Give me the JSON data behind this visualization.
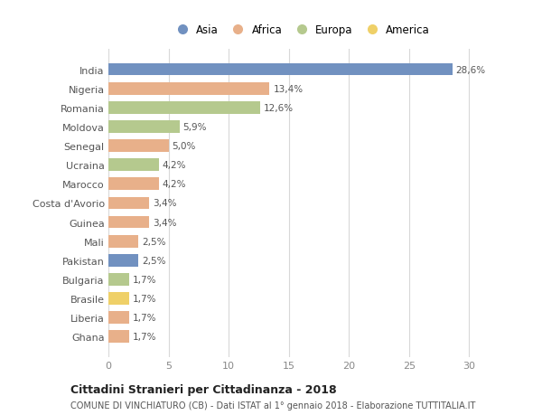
{
  "countries": [
    "India",
    "Nigeria",
    "Romania",
    "Moldova",
    "Senegal",
    "Ucraina",
    "Marocco",
    "Costa d'Avorio",
    "Guinea",
    "Mali",
    "Pakistan",
    "Bulgaria",
    "Brasile",
    "Liberia",
    "Ghana"
  ],
  "values": [
    28.6,
    13.4,
    12.6,
    5.9,
    5.0,
    4.2,
    4.2,
    3.4,
    3.4,
    2.5,
    2.5,
    1.7,
    1.7,
    1.7,
    1.7
  ],
  "labels": [
    "28,6%",
    "13,4%",
    "12,6%",
    "5,9%",
    "5,0%",
    "4,2%",
    "4,2%",
    "3,4%",
    "3,4%",
    "2,5%",
    "2,5%",
    "1,7%",
    "1,7%",
    "1,7%",
    "1,7%"
  ],
  "regions": [
    "Asia",
    "Africa",
    "Europa",
    "Europa",
    "Africa",
    "Europa",
    "Africa",
    "Africa",
    "Africa",
    "Africa",
    "Asia",
    "Europa",
    "America",
    "Africa",
    "Africa"
  ],
  "region_colors": {
    "Asia": "#7191c0",
    "Africa": "#e8b08a",
    "Europa": "#b5c98e",
    "America": "#efd068"
  },
  "legend_order": [
    "Asia",
    "Africa",
    "Europa",
    "America"
  ],
  "title": "Cittadini Stranieri per Cittadinanza - 2018",
  "subtitle": "COMUNE DI VINCHIATURO (CB) - Dati ISTAT al 1° gennaio 2018 - Elaborazione TUTTITALIA.IT",
  "xlim": [
    0,
    32
  ],
  "xticks": [
    0,
    5,
    10,
    15,
    20,
    25,
    30
  ],
  "bg_color": "#ffffff",
  "grid_color": "#d8d8d8",
  "bar_height": 0.65
}
